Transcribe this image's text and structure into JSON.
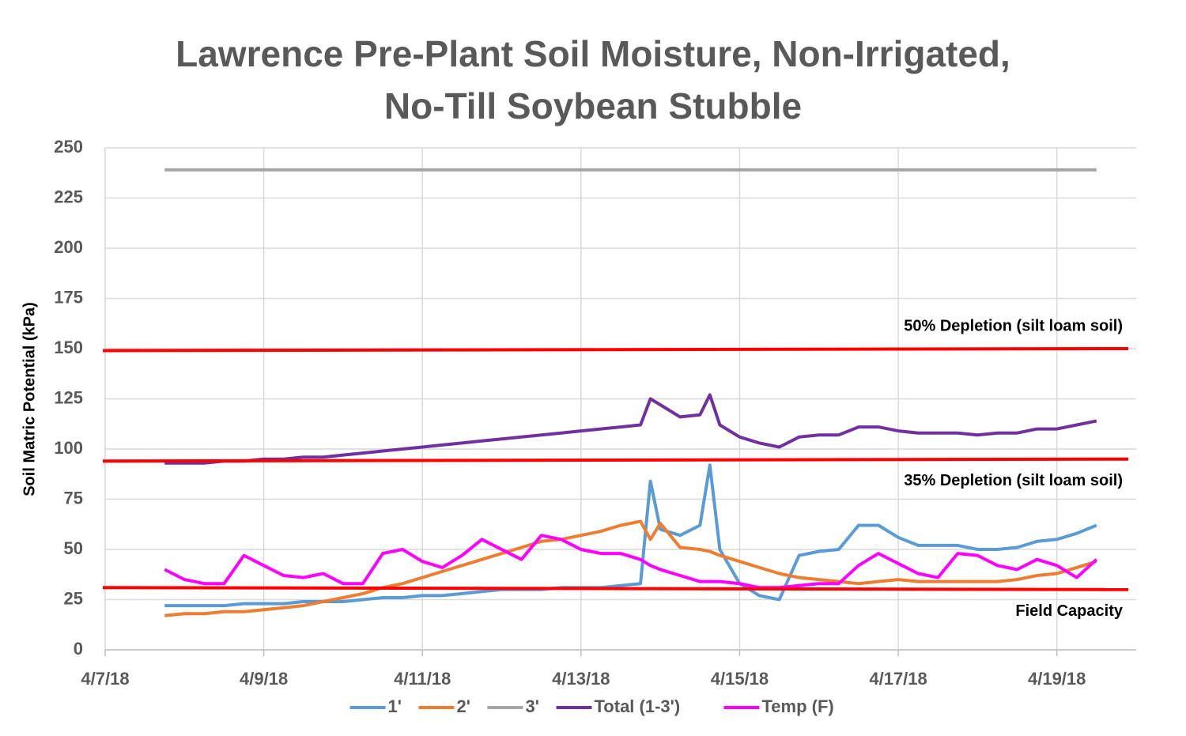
{
  "chart_data": {
    "type": "line",
    "title": [
      "Lawrence Pre-Plant Soil Moisture, Non-Irrigated,",
      "No-Till Soybean Stubble"
    ],
    "y_label": "Soil Matric Potential (kPa)",
    "x": [
      "2018-04-07T18:00",
      "2018-04-08T00:00",
      "2018-04-08T06:00",
      "2018-04-08T12:00",
      "2018-04-08T18:00",
      "2018-04-09T00:00",
      "2018-04-09T06:00",
      "2018-04-09T12:00",
      "2018-04-09T18:00",
      "2018-04-10T00:00",
      "2018-04-10T06:00",
      "2018-04-10T12:00",
      "2018-04-10T18:00",
      "2018-04-11T00:00",
      "2018-04-11T06:00",
      "2018-04-11T12:00",
      "2018-04-11T18:00",
      "2018-04-12T00:00",
      "2018-04-12T06:00",
      "2018-04-12T12:00",
      "2018-04-12T18:00",
      "2018-04-13T00:00",
      "2018-04-13T06:00",
      "2018-04-13T12:00",
      "2018-04-13T18:00",
      "2018-04-13T21:00",
      "2018-04-14T00:00",
      "2018-04-14T06:00",
      "2018-04-14T12:00",
      "2018-04-14T15:00",
      "2018-04-14T18:00",
      "2018-04-15T00:00",
      "2018-04-15T06:00",
      "2018-04-15T12:00",
      "2018-04-15T18:00",
      "2018-04-16T00:00",
      "2018-04-16T06:00",
      "2018-04-16T12:00",
      "2018-04-16T18:00",
      "2018-04-17T00:00",
      "2018-04-17T06:00",
      "2018-04-17T12:00",
      "2018-04-17T18:00",
      "2018-04-18T00:00",
      "2018-04-18T06:00",
      "2018-04-18T12:00",
      "2018-04-18T18:00",
      "2018-04-19T00:00",
      "2018-04-19T06:00",
      "2018-04-19T12:00"
    ],
    "series": [
      {
        "name": "1'",
        "color": "#5b9bd5",
        "values": [
          22,
          22,
          22,
          22,
          23,
          23,
          23,
          24,
          24,
          24,
          25,
          26,
          26,
          27,
          27,
          28,
          29,
          30,
          30,
          30,
          31,
          31,
          31,
          32,
          33,
          84,
          60,
          57,
          62,
          92,
          50,
          33,
          27,
          25,
          47,
          49,
          50,
          62,
          62,
          56,
          52,
          52,
          52,
          50,
          50,
          51,
          54,
          55,
          58,
          62
        ]
      },
      {
        "name": "2'",
        "color": "#ed7d31",
        "values": [
          17,
          18,
          18,
          19,
          19,
          20,
          21,
          22,
          24,
          26,
          28,
          31,
          33,
          36,
          39,
          42,
          45,
          48,
          51,
          54,
          55,
          57,
          59,
          62,
          64,
          55,
          63,
          51,
          50,
          49,
          47,
          44,
          41,
          38,
          36,
          35,
          34,
          33,
          34,
          35,
          34,
          34,
          34,
          34,
          34,
          35,
          37,
          38,
          41,
          44
        ]
      },
      {
        "name": "3'",
        "color": "#a5a5a5",
        "values": [
          239,
          239,
          239,
          239,
          239,
          239,
          239,
          239,
          239,
          239,
          239,
          239,
          239,
          239,
          239,
          239,
          239,
          239,
          239,
          239,
          239,
          239,
          239,
          239,
          239,
          239,
          239,
          239,
          239,
          239,
          239,
          239,
          239,
          239,
          239,
          239,
          239,
          239,
          239,
          239,
          239,
          239,
          239,
          239,
          239,
          239,
          239,
          239,
          239,
          239
        ]
      },
      {
        "name": "Total (1-3')",
        "color": "#7030a0",
        "values": [
          93,
          93,
          93,
          94,
          94,
          95,
          95,
          96,
          96,
          97,
          98,
          99,
          100,
          101,
          102,
          103,
          104,
          105,
          106,
          107,
          108,
          109,
          110,
          111,
          112,
          125,
          122,
          116,
          117,
          127,
          112,
          106,
          103,
          101,
          106,
          107,
          107,
          111,
          111,
          109,
          108,
          108,
          108,
          107,
          108,
          108,
          110,
          110,
          112,
          114
        ]
      },
      {
        "name": "Temp (F)",
        "color": "#ff00ff",
        "values": [
          40,
          35,
          33,
          33,
          47,
          42,
          37,
          36,
          38,
          33,
          33,
          48,
          50,
          44,
          41,
          47,
          55,
          50,
          45,
          57,
          55,
          50,
          48,
          48,
          45,
          42,
          40,
          37,
          34,
          34,
          34,
          33,
          31,
          31,
          32,
          33,
          33,
          42,
          48,
          43,
          38,
          36,
          48,
          47,
          42,
          40,
          45,
          42,
          36,
          45
        ]
      }
    ],
    "reference_lines": [
      {
        "label": "50% Depletion (silt loam soil)",
        "values": [
          149,
          150
        ],
        "color": "#ff0000"
      },
      {
        "label": "35% Depletion (silt loam soil)",
        "values": [
          94,
          95
        ],
        "color": "#ff0000"
      },
      {
        "label": "Field Capacity",
        "values": [
          31,
          30
        ],
        "color": "#ff0000"
      }
    ],
    "xlim": [
      "2018-04-07",
      "2018-04-20"
    ],
    "xticks": [
      {
        "value": "2018-04-07",
        "label": "4/7/18"
      },
      {
        "value": "2018-04-09",
        "label": "4/9/18"
      },
      {
        "value": "2018-04-11",
        "label": "4/11/18"
      },
      {
        "value": "2018-04-13",
        "label": "4/13/18"
      },
      {
        "value": "2018-04-15",
        "label": "4/15/18"
      },
      {
        "value": "2018-04-17",
        "label": "4/17/18"
      },
      {
        "value": "2018-04-19",
        "label": "4/19/18"
      }
    ],
    "ylim": [
      0,
      250
    ],
    "yticks": [
      0,
      25,
      50,
      75,
      100,
      125,
      150,
      175,
      200,
      225,
      250
    ],
    "grid": true,
    "legend": "bottom"
  }
}
